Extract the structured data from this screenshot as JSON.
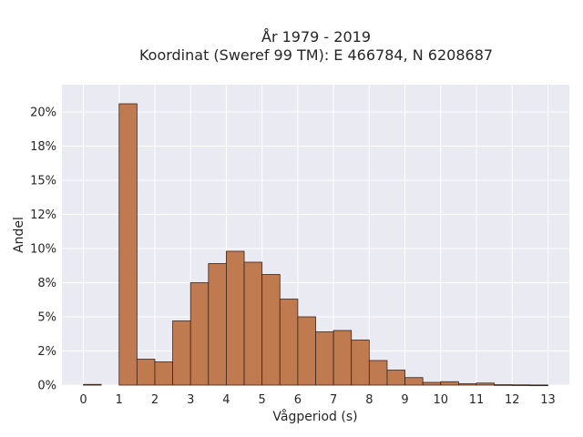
{
  "chart_data": {
    "type": "bar",
    "title": [
      "År 1979 - 2019",
      "Koordinat (Sweref 99 TM): E 466784, N 6208687"
    ],
    "xlabel": "Vågperiod (s)",
    "ylabel": "Andel",
    "x_ticks": [
      "0",
      "1",
      "2",
      "3",
      "4",
      "5",
      "6",
      "7",
      "8",
      "9",
      "10",
      "11",
      "12",
      "13"
    ],
    "y_ticks": [
      "0%",
      "2%",
      "5%",
      "8%",
      "10%",
      "12%",
      "15%",
      "18%",
      "20%"
    ],
    "y_tick_values": [
      0,
      2.5,
      5,
      7.5,
      10,
      12.5,
      15,
      17.5,
      20
    ],
    "xlim": [
      -0.6,
      13.6
    ],
    "ylim": [
      0,
      22
    ],
    "bin_width": 0.5,
    "bins": [
      {
        "x": 0.0,
        "value": 0.05
      },
      {
        "x": 0.5,
        "value": 0.0
      },
      {
        "x": 1.0,
        "value": 20.6
      },
      {
        "x": 1.5,
        "value": 1.9
      },
      {
        "x": 2.0,
        "value": 1.7
      },
      {
        "x": 2.5,
        "value": 4.7
      },
      {
        "x": 3.0,
        "value": 7.5
      },
      {
        "x": 3.5,
        "value": 8.9
      },
      {
        "x": 4.0,
        "value": 9.8
      },
      {
        "x": 4.5,
        "value": 9.0
      },
      {
        "x": 5.0,
        "value": 8.1
      },
      {
        "x": 5.5,
        "value": 6.3
      },
      {
        "x": 6.0,
        "value": 5.0
      },
      {
        "x": 6.5,
        "value": 3.9
      },
      {
        "x": 7.0,
        "value": 4.0
      },
      {
        "x": 7.5,
        "value": 3.3
      },
      {
        "x": 8.0,
        "value": 1.8
      },
      {
        "x": 8.5,
        "value": 1.1
      },
      {
        "x": 9.0,
        "value": 0.55
      },
      {
        "x": 9.5,
        "value": 0.2
      },
      {
        "x": 10.0,
        "value": 0.25
      },
      {
        "x": 10.5,
        "value": 0.1
      },
      {
        "x": 11.0,
        "value": 0.15
      },
      {
        "x": 11.5,
        "value": 0.03
      },
      {
        "x": 12.0,
        "value": 0.02
      },
      {
        "x": 12.5,
        "value": 0.01
      }
    ],
    "grid": true,
    "colors": {
      "bar_fill": "#c07a50",
      "bar_edge": "#3b2418",
      "plot_bg": "#eaeaf2",
      "grid": "#ffffff"
    }
  }
}
